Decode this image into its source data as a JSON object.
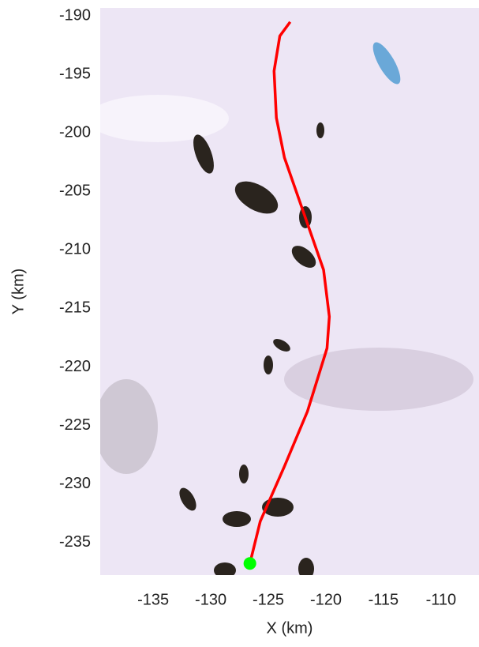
{
  "chart_data": {
    "type": "line",
    "xlabel": "X (km)",
    "ylabel": "Y (km)",
    "x": [
      -126.6,
      -125.7,
      -123.6,
      -121.6,
      -119.9,
      -119.7,
      -120.2,
      -121.9,
      -123.6,
      -124.3,
      -124.5,
      -124.0,
      -123.1
    ],
    "values": [
      -236.8,
      -233.2,
      -228.5,
      -223.8,
      -218.4,
      -215.7,
      -211.7,
      -206.9,
      -202.1,
      -198.7,
      -194.7,
      -191.7,
      -190.5
    ],
    "color": "#ff0000",
    "start_point": {
      "x": -126.6,
      "y": -236.8,
      "color": "#00ff00"
    },
    "xlim": [
      -139.6,
      -106.7
    ],
    "ylim": [
      -237.8,
      -189.3
    ],
    "xticks": [
      -135,
      -130,
      -125,
      -120,
      -115,
      -110
    ],
    "yticks": [
      -190,
      -195,
      -200,
      -205,
      -210,
      -215,
      -220,
      -225,
      -230,
      -235
    ],
    "grid": false
  }
}
